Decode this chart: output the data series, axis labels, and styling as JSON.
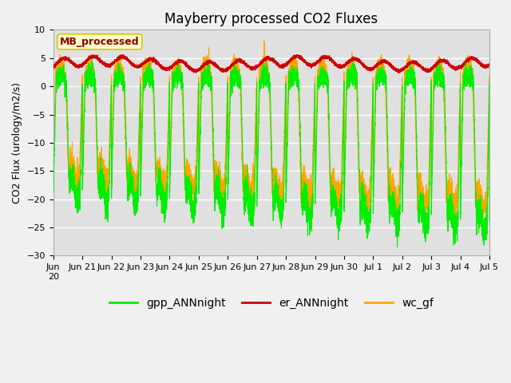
{
  "title": "Mayberry processed CO2 Fluxes",
  "ylabel": "CO2 Flux (urology/m2/s)",
  "ylim": [
    -30,
    10
  ],
  "yticks": [
    -30,
    -25,
    -20,
    -15,
    -10,
    -5,
    0,
    5,
    10
  ],
  "fig_bg_color": "#f0f0f0",
  "plot_bg_color": "#e0e0e0",
  "gpp_color": "#00ee00",
  "er_color": "#cc0000",
  "wc_color": "#ffa500",
  "legend_label": "MB_processed",
  "legend_text_color": "#8b0000",
  "legend_bg": "#ffffcc",
  "legend_edge": "#cccc00",
  "line_labels": [
    "gpp_ANNnight",
    "er_ANNnight",
    "wc_gf"
  ],
  "title_fontsize": 12,
  "axis_fontsize": 9,
  "tick_fontsize": 8
}
